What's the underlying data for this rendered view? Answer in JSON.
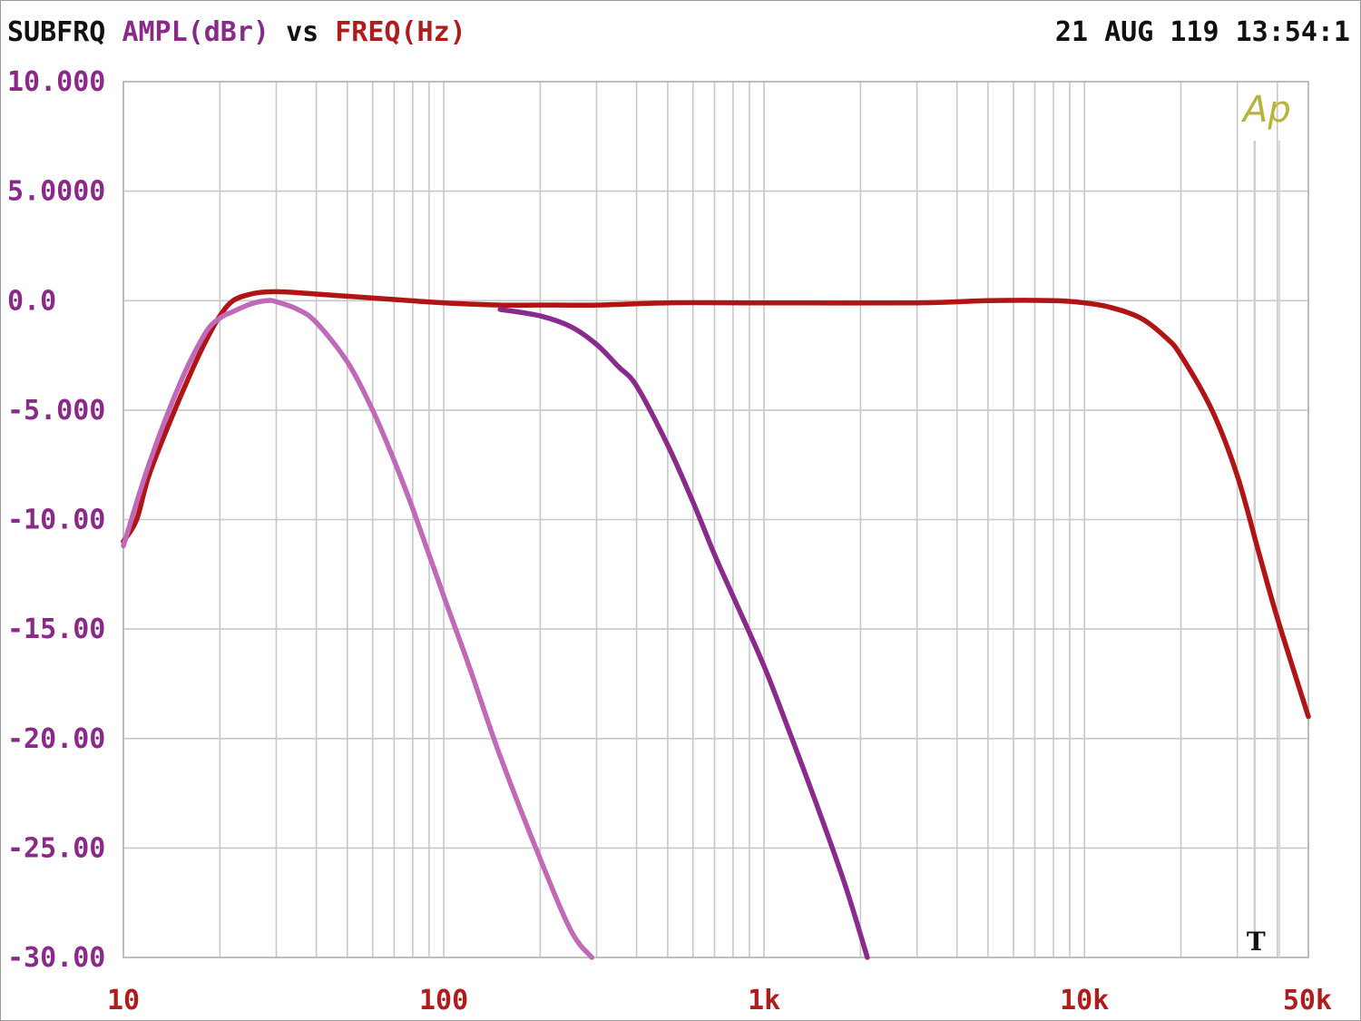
{
  "header": {
    "name": "SUBFRQ",
    "y_label": "AMPL(dBr)",
    "vs": "vs",
    "x_label": "FREQ(Hz)",
    "timestamp": "21 AUG 119 13:54:1"
  },
  "colors": {
    "name": "#111111",
    "y_label": "#8a2a88",
    "x_label": "#b01c1c",
    "grid": "#c8c8c8",
    "series_red": "#b01414",
    "series_purple": "#8a2a8c",
    "series_pink": "#c069b8",
    "logo": "#b8b43a"
  },
  "logo": {
    "text": "Ap"
  },
  "cursor_marker": {
    "label": "T",
    "freq": 34000
  },
  "chart_data": {
    "type": "line",
    "x_scale": "log",
    "xlim": [
      10,
      50000
    ],
    "ylim": [
      -30,
      10
    ],
    "grid": true,
    "x_ticks": [
      {
        "value": 10,
        "label": "10"
      },
      {
        "value": 100,
        "label": "100"
      },
      {
        "value": 1000,
        "label": "1k"
      },
      {
        "value": 10000,
        "label": "10k"
      },
      {
        "value": 50000,
        "label": "50k"
      }
    ],
    "y_ticks": [
      {
        "value": 10,
        "label": "10.000"
      },
      {
        "value": 5,
        "label": "5.0000"
      },
      {
        "value": 0,
        "label": "0.0"
      },
      {
        "value": -5,
        "label": "-5.000"
      },
      {
        "value": -10,
        "label": "-10.00"
      },
      {
        "value": -15,
        "label": "-15.00"
      },
      {
        "value": -20,
        "label": "-20.00"
      },
      {
        "value": -25,
        "label": "-25.00"
      },
      {
        "value": -30,
        "label": "-30.00"
      }
    ],
    "series": [
      {
        "color": "#b01414",
        "x": [
          10,
          11,
          12,
          14,
          16,
          18,
          20,
          22,
          25,
          28,
          32,
          40,
          50,
          70,
          100,
          150,
          200,
          300,
          500,
          1000,
          3000,
          5000,
          8000,
          10000,
          12000,
          15000,
          18000,
          20000,
          25000,
          30000,
          35000,
          40000,
          50000
        ],
        "y": [
          -11,
          -10,
          -8,
          -5.5,
          -3.5,
          -1.9,
          -0.7,
          0,
          0.3,
          0.4,
          0.4,
          0.3,
          0.2,
          0.05,
          -0.1,
          -0.2,
          -0.2,
          -0.2,
          -0.1,
          -0.1,
          -0.1,
          0,
          0,
          -0.1,
          -0.3,
          -0.8,
          -1.7,
          -2.5,
          -5,
          -8,
          -11.5,
          -14.5,
          -19
        ]
      },
      {
        "color": "#c069b8",
        "x": [
          10,
          12,
          15,
          18,
          20,
          22,
          25,
          28,
          30,
          35,
          40,
          50,
          60,
          70,
          80,
          100,
          120,
          150,
          200,
          250,
          290
        ],
        "y": [
          -11.2,
          -7.5,
          -3.8,
          -1.5,
          -0.8,
          -0.5,
          -0.15,
          0,
          -0.05,
          -0.4,
          -1,
          -2.8,
          -5,
          -7.3,
          -9.5,
          -13.5,
          -16.7,
          -20.8,
          -25.5,
          -28.8,
          -30
        ]
      },
      {
        "color": "#8a2a8c",
        "x": [
          150,
          200,
          250,
          300,
          350,
          400,
          500,
          600,
          700,
          800,
          1000,
          1200,
          1500,
          1800,
          2100
        ],
        "y": [
          -0.4,
          -0.7,
          -1.2,
          -2,
          -3,
          -3.9,
          -6.6,
          -9.2,
          -11.6,
          -13.5,
          -16.7,
          -19.7,
          -23.5,
          -26.8,
          -30
        ]
      }
    ]
  }
}
